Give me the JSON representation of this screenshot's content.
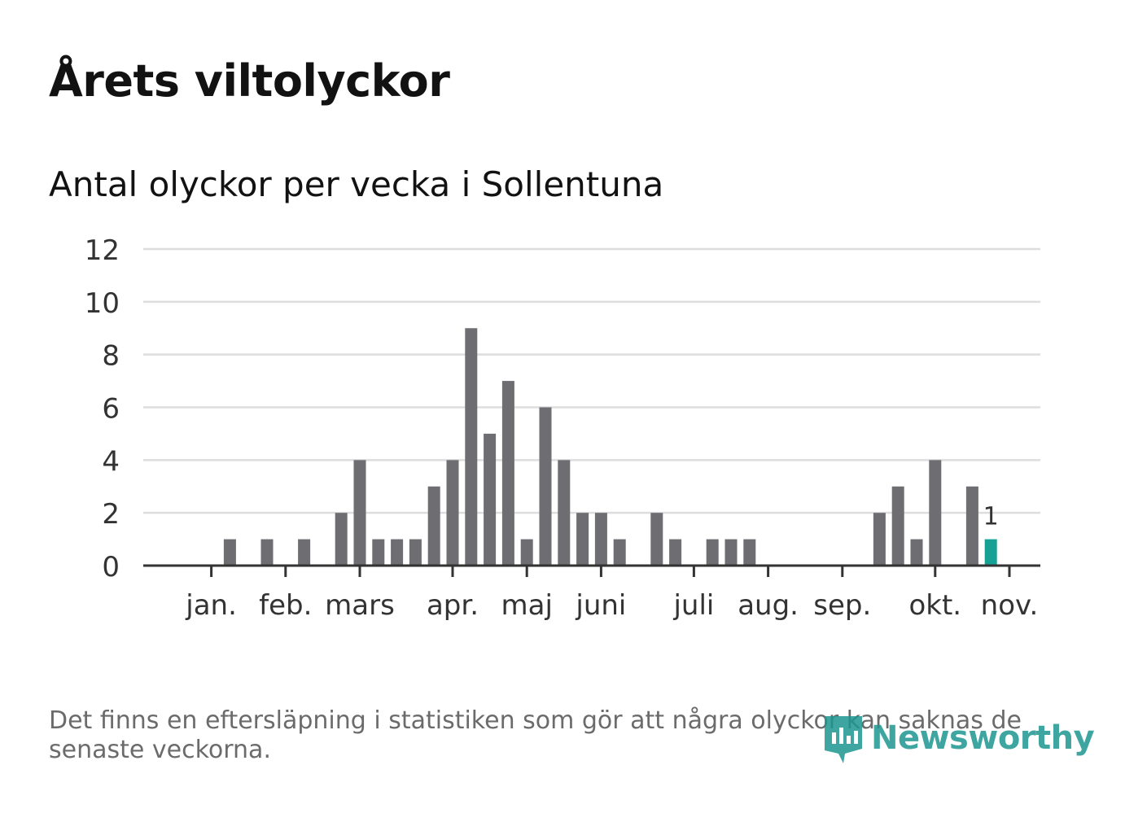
{
  "title": "Årets viltolyckor",
  "subtitle": "Antal olyckor per vecka i Sollentuna",
  "note": "Det finns en eftersläpning i statistiken som gör att några olyckor kan saknas de senaste veckorna.",
  "logo_text": "Newsworthy",
  "colors": {
    "bar": "#6e6d72",
    "highlight": "#17a195",
    "grid": "#dddddd",
    "axis": "#333333"
  },
  "chart_data": {
    "type": "bar",
    "title": "Antal olyckor per vecka i Sollentuna",
    "xlabel": "",
    "ylabel": "",
    "ylim": [
      0,
      12
    ],
    "yticks": [
      "0",
      "2",
      "4",
      "6",
      "8",
      "10",
      "12"
    ],
    "grid": true,
    "weeks": [
      1,
      2,
      3,
      4,
      5,
      6,
      7,
      8,
      9,
      10,
      11,
      12,
      13,
      14,
      15,
      16,
      17,
      18,
      19,
      20,
      21,
      22,
      23,
      24,
      25,
      26,
      27,
      28,
      29,
      30,
      31,
      32,
      33,
      34,
      35,
      36,
      37,
      38,
      39,
      40,
      41,
      42,
      43,
      44,
      45
    ],
    "values": [
      0,
      0,
      0,
      1,
      0,
      1,
      0,
      1,
      0,
      2,
      4,
      1,
      1,
      1,
      3,
      4,
      9,
      5,
      7,
      1,
      6,
      4,
      2,
      2,
      1,
      0,
      2,
      1,
      0,
      1,
      1,
      1,
      0,
      0,
      0,
      0,
      0,
      0,
      2,
      3,
      1,
      4,
      0,
      3,
      1
    ],
    "highlight_index": 44,
    "highlight_label": "1",
    "month_ticks": [
      {
        "label": "jan.",
        "week": 3
      },
      {
        "label": "feb.",
        "week": 7
      },
      {
        "label": "mars",
        "week": 11
      },
      {
        "label": "apr.",
        "week": 16
      },
      {
        "label": "maj",
        "week": 20
      },
      {
        "label": "juni",
        "week": 24
      },
      {
        "label": "juli",
        "week": 29
      },
      {
        "label": "aug.",
        "week": 33
      },
      {
        "label": "sep.",
        "week": 37
      },
      {
        "label": "okt.",
        "week": 42
      },
      {
        "label": "nov.",
        "week": 46
      }
    ]
  }
}
